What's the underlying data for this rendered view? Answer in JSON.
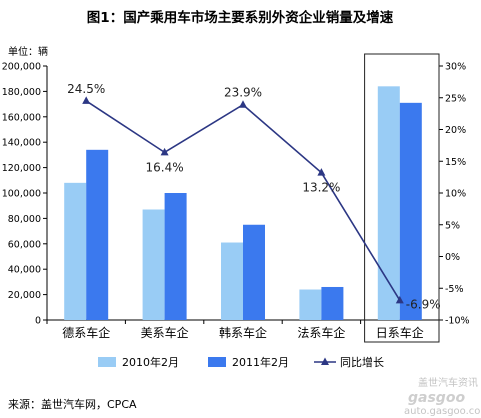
{
  "chart_data": {
    "type": "bar",
    "title": "图1：国产乘用车市场主要系别外资企业销量及增速",
    "ylabel": "单位：辆",
    "categories": [
      "德系车企",
      "美系车企",
      "韩系车企",
      "法系车企",
      "日系车企"
    ],
    "series": [
      {
        "name": "2010年2月",
        "type": "bar",
        "axis": "left",
        "color": "#99ccf5",
        "values": [
          108000,
          87000,
          61000,
          24000,
          184000
        ]
      },
      {
        "name": "2011年2月",
        "type": "bar",
        "axis": "left",
        "color": "#3b79ee",
        "values": [
          134000,
          100000,
          75000,
          26000,
          171000
        ]
      },
      {
        "name": "同比增长",
        "type": "line",
        "axis": "right",
        "color": "#2c3784",
        "values": [
          24.5,
          16.4,
          23.9,
          13.2,
          -6.9
        ],
        "labels": [
          "24.5%",
          "16.4%",
          "23.9%",
          "13.2%",
          "-6.9%"
        ]
      }
    ],
    "ylim": [
      0,
      200000
    ],
    "yticks": [
      "0",
      "20,000",
      "40,000",
      "60,000",
      "80,000",
      "100,000",
      "120,000",
      "140,000",
      "160,000",
      "180,000",
      "200,000"
    ],
    "y2lim": [
      -10,
      30
    ],
    "y2ticks": [
      "-10%",
      "-5%",
      "0%",
      "5%",
      "10%",
      "15%",
      "20%",
      "25%",
      "30%"
    ],
    "legend_position": "bottom",
    "highlight_category": "日系车企",
    "negative_label_color": "#ff0000"
  },
  "source": "来源：盖世汽车网，CPCA",
  "watermark": {
    "brand": "gasgoo",
    "site": "auto.gasgoo.com",
    "cn": "盖世汽车资讯"
  }
}
